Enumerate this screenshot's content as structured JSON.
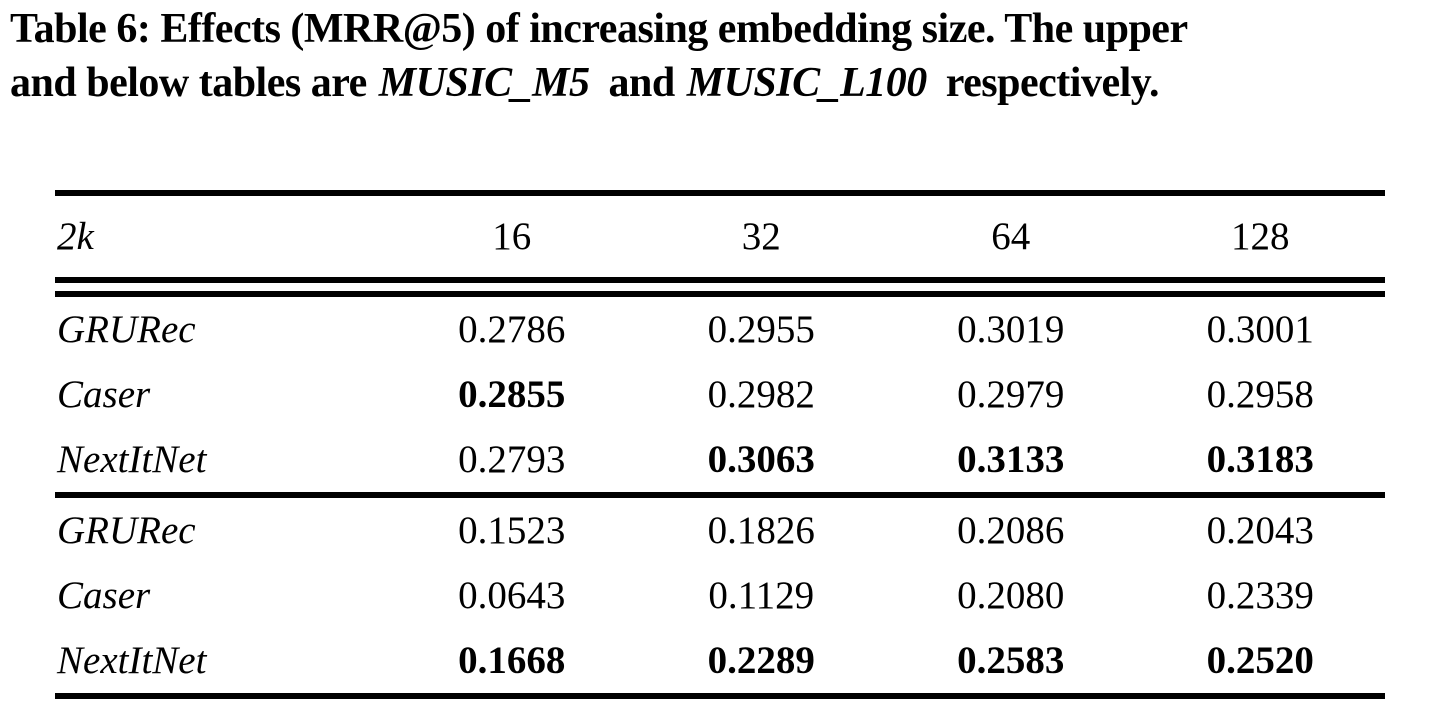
{
  "colors": {
    "text": "#000000",
    "background": "#ffffff"
  },
  "caption": {
    "line1": "Table 6: Effects (MRR@5) of increasing embedding size. The upper",
    "line2_pre": "and below tables are ",
    "dataset1": "MUSIC_M5",
    "line2_mid": " and ",
    "dataset2": "MUSIC_L100",
    "line2_post": " respectively."
  },
  "table": {
    "header": {
      "corner": "2k",
      "cols": [
        "16",
        "32",
        "64",
        "128"
      ]
    },
    "blocks": [
      {
        "rows": [
          {
            "model": "GRURec",
            "values": [
              "0.2786",
              "0.2955",
              "0.3019",
              "0.3001"
            ],
            "bold": [
              false,
              false,
              false,
              false
            ]
          },
          {
            "model": "Caser",
            "values": [
              "0.2855",
              "0.2982",
              "0.2979",
              "0.2958"
            ],
            "bold": [
              true,
              false,
              false,
              false
            ]
          },
          {
            "model": "NextItNet",
            "values": [
              "0.2793",
              "0.3063",
              "0.3133",
              "0.3183"
            ],
            "bold": [
              false,
              true,
              true,
              true
            ]
          }
        ]
      },
      {
        "rows": [
          {
            "model": "GRURec",
            "values": [
              "0.1523",
              "0.1826",
              "0.2086",
              "0.2043"
            ],
            "bold": [
              false,
              false,
              false,
              false
            ]
          },
          {
            "model": "Caser",
            "values": [
              "0.0643",
              "0.1129",
              "0.2080",
              "0.2339"
            ],
            "bold": [
              false,
              false,
              false,
              false
            ]
          },
          {
            "model": "NextItNet",
            "values": [
              "0.1668",
              "0.2289",
              "0.2583",
              "0.2520"
            ],
            "bold": [
              true,
              true,
              true,
              true
            ]
          }
        ]
      }
    ]
  }
}
